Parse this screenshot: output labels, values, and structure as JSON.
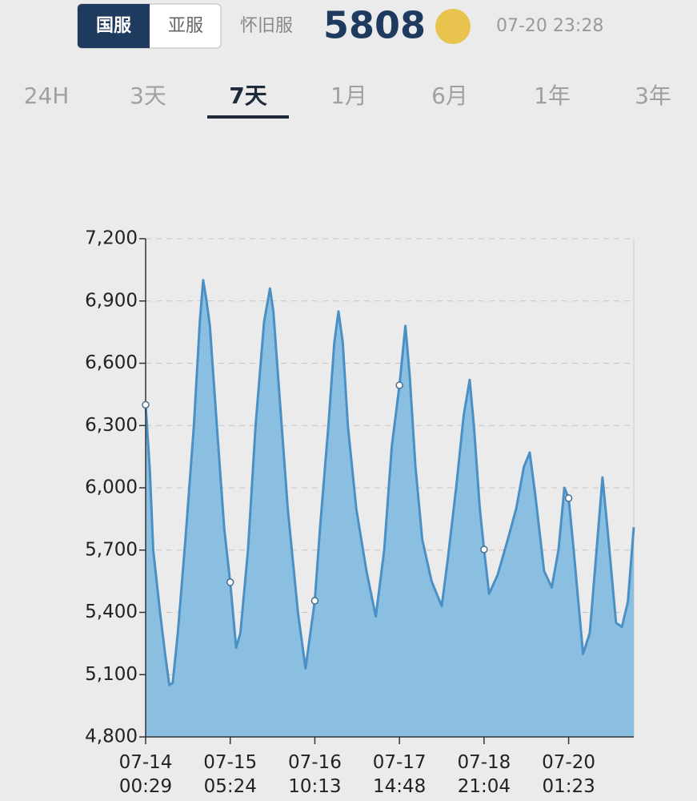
{
  "header": {
    "servers": [
      "国服",
      "亚服"
    ],
    "server_selected": 0,
    "server_type": "怀旧服",
    "price": "5808",
    "time": "07-20 23:28"
  },
  "tabs": {
    "periods": [
      "24H",
      "3天",
      "7天",
      "1月",
      "6月",
      "1年",
      "3年"
    ],
    "selected": 2
  },
  "chart_data": {
    "type": "area",
    "x": [
      0,
      0.05,
      0.09,
      0.17,
      0.23,
      0.28,
      0.32,
      0.38,
      0.47,
      0.57,
      0.64,
      0.68,
      0.72,
      0.76,
      0.79,
      0.85,
      0.93,
      1.0,
      1.07,
      1.12,
      1.21,
      1.3,
      1.4,
      1.47,
      1.51,
      1.59,
      1.68,
      1.8,
      1.89,
      2.0,
      2.06,
      2.16,
      2.23,
      2.28,
      2.33,
      2.39,
      2.49,
      2.61,
      2.72,
      2.82,
      2.91,
      3.0,
      3.07,
      3.12,
      3.19,
      3.27,
      3.38,
      3.5,
      3.57,
      3.67,
      3.76,
      3.83,
      3.88,
      3.95,
      4.0,
      4.06,
      4.16,
      4.28,
      4.38,
      4.47,
      4.54,
      4.61,
      4.71,
      4.8,
      4.88,
      4.95,
      5.0,
      5.06,
      5.17,
      5.25,
      5.33,
      5.4,
      5.46,
      5.56,
      5.63,
      5.7,
      5.77
    ],
    "values": [
      6400,
      6080,
      5700,
      5400,
      5200,
      5050,
      5060,
      5300,
      5750,
      6300,
      6800,
      7000,
      6900,
      6780,
      6600,
      6250,
      5800,
      5545,
      5230,
      5300,
      5700,
      6300,
      6800,
      6960,
      6850,
      6400,
      5900,
      5400,
      5130,
      5456,
      5800,
      6300,
      6700,
      6850,
      6700,
      6300,
      5900,
      5600,
      5380,
      5700,
      6200,
      6494,
      6780,
      6550,
      6100,
      5750,
      5550,
      5430,
      5650,
      6000,
      6350,
      6520,
      6300,
      5900,
      5703,
      5490,
      5580,
      5750,
      5900,
      6100,
      6170,
      5950,
      5600,
      5520,
      5700,
      6000,
      5950,
      5700,
      5200,
      5300,
      5700,
      6050,
      5800,
      5350,
      5330,
      5450,
      5810
    ],
    "color": "#4a90c4",
    "fill": "#8bbfe2",
    "xlim": [
      0,
      5.77
    ],
    "xticks": [
      {
        "value": 0,
        "label": "07-14\n00:29"
      },
      {
        "value": 1,
        "label": "07-15\n05:24"
      },
      {
        "value": 2,
        "label": "07-16\n10:13"
      },
      {
        "value": 3,
        "label": "07-17\n14:48"
      },
      {
        "value": 4,
        "label": "07-18\n21:04"
      },
      {
        "value": 5,
        "label": "07-20\n01:23"
      }
    ],
    "ylim": [
      4800,
      7200
    ],
    "yticks": [
      {
        "value": 4800,
        "label": "4,800"
      },
      {
        "value": 5100,
        "label": "5,100"
      },
      {
        "value": 5400,
        "label": "5,400"
      },
      {
        "value": 5700,
        "label": "5,700"
      },
      {
        "value": 6000,
        "label": "6,000"
      },
      {
        "value": 6300,
        "label": "6,300"
      },
      {
        "value": 6600,
        "label": "6,600"
      },
      {
        "value": 6900,
        "label": "6,900"
      },
      {
        "value": 7200,
        "label": "7,200"
      }
    ],
    "grid": true
  }
}
